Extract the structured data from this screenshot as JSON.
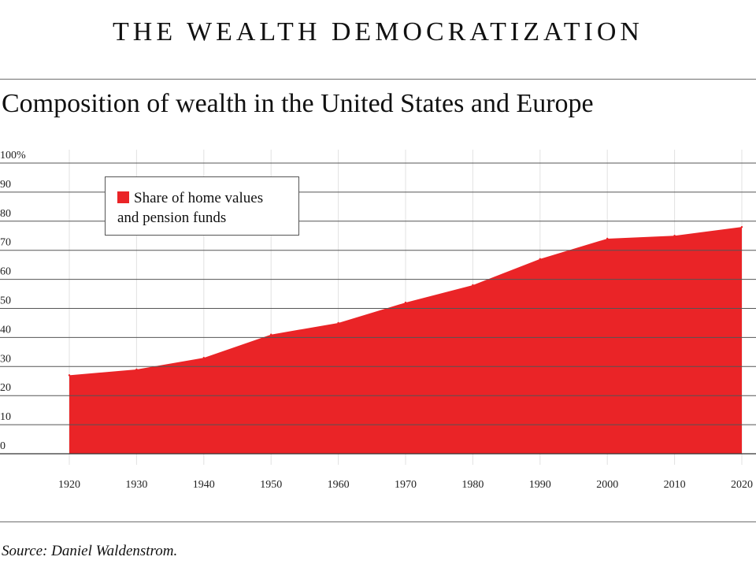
{
  "header": {
    "title": "THE WEALTH DEMOCRATIZATION"
  },
  "chart_data": {
    "type": "area",
    "title": "Composition of wealth in the United States and Europe",
    "xlabel": "",
    "ylabel": "",
    "x": [
      1920,
      1930,
      1940,
      1950,
      1960,
      1970,
      1980,
      1990,
      2000,
      2010,
      2020
    ],
    "x_tick_labels": [
      "1920",
      "1930",
      "1940",
      "1950",
      "1960",
      "1970",
      "1980",
      "1990",
      "2000",
      "2010",
      "2020"
    ],
    "y_tick_labels": [
      "100%",
      "90",
      "80",
      "70",
      "60",
      "50",
      "40",
      "30",
      "20",
      "10",
      "0"
    ],
    "y_ticks": [
      100,
      90,
      80,
      70,
      60,
      50,
      40,
      30,
      20,
      10,
      0
    ],
    "ylim": [
      0,
      100
    ],
    "xlim": [
      1920,
      2020
    ],
    "series": [
      {
        "name": "Share of home values and pension funds",
        "legend_lines": [
          "Share of home values",
          "and pension funds"
        ],
        "values": [
          27,
          29,
          33,
          41,
          45,
          52,
          58,
          67,
          74,
          75,
          78
        ],
        "color": "#ea2427"
      }
    ],
    "grid": true,
    "legend_position": "top-left"
  },
  "source": "Source: Daniel Waldenstrom."
}
